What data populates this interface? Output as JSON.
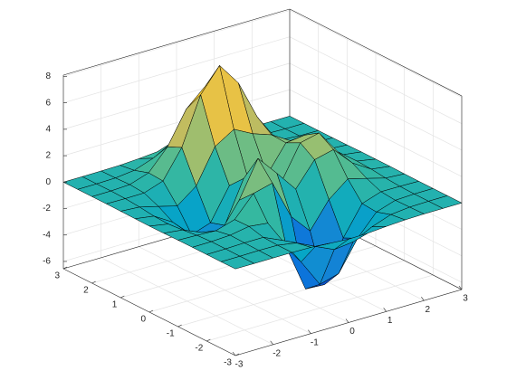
{
  "chart_data": {
    "type": "surface",
    "x": [
      -3,
      -2.5,
      -2,
      -1.5,
      -1,
      -0.5,
      0,
      0.5,
      1,
      1.5,
      2,
      2.5,
      3
    ],
    "y": [
      -3,
      -2.5,
      -2,
      -1.5,
      -1,
      -0.5,
      0,
      0.5,
      1,
      1.5,
      2,
      2.5,
      3
    ],
    "z": [
      [
        0.01,
        0,
        0,
        0,
        -0.03,
        -0.14,
        -0.24,
        -0.22,
        -0.11,
        -0.03,
        0,
        0,
        0
      ],
      [
        0,
        0,
        0.02,
        0,
        -0.24,
        -0.92,
        -1.57,
        -1.41,
        -0.69,
        -0.18,
        -0.03,
        0,
        0
      ],
      [
        0,
        0.01,
        0.05,
        0.05,
        -0.59,
        -2.64,
        -4.75,
        -4.35,
        -2.1,
        -0.53,
        -0.06,
        0,
        0
      ],
      [
        0,
        0.01,
        0.08,
        0.33,
        0.16,
        -2.16,
        -5.65,
        -5.74,
        -2.63,
        -0.44,
        0.04,
        0.03,
        0
      ],
      [
        -0.01,
        -0.06,
        -0.13,
        0.3,
        1.86,
        2.23,
        -0.73,
        -2.23,
        -0.27,
        0.88,
        0.5,
        0.11,
        0.01
      ],
      [
        -0.03,
        -0.2,
        -0.8,
        -1.21,
        0.8,
        3.55,
        2,
        0.39,
        2.2,
        2.55,
        1.12,
        0.24,
        0.03
      ],
      [
        -0.04,
        -0.3,
        -1.33,
        -2.77,
        -1.65,
        1.48,
        0.98,
        0.38,
        2.93,
        3.26,
        1.41,
        0.3,
        0.03
      ],
      [
        -0.03,
        -0.25,
        -1.12,
        -2.49,
        -2,
        0.39,
        0.46,
        0.38,
        2.38,
        2.55,
        1.09,
        0.23,
        0.03
      ],
      [
        -0.01,
        -0.11,
        -0.48,
        -0.86,
        0.23,
        2.8,
        3.69,
        2.94,
        2.44,
        1.58,
        0.58,
        0.11,
        0.01
      ],
      [
        0,
        -0.02,
        -0.01,
        0.48,
        2.6,
        6.17,
        7.97,
        6.23,
        3.24,
        1.18,
        0.29,
        0.05,
        0
      ],
      [
        0,
        0.01,
        0.08,
        0.55,
        2.1,
        4.55,
        5.85,
        4.57,
        2.21,
        0.67,
        0.13,
        0.02,
        0
      ],
      [
        0,
        0,
        0.03,
        0.19,
        0.69,
        1.47,
        1.88,
        1.47,
        0.7,
        0.2,
        0.04,
        0,
        0
      ],
      [
        0,
        0,
        0.01,
        0.03,
        0.11,
        0.23,
        0.3,
        0.23,
        0.11,
        0.03,
        0.01,
        0,
        0
      ]
    ],
    "xlim": [
      -3,
      3
    ],
    "ylim": [
      -3,
      3
    ],
    "zlim": [
      -6.55,
      8.1
    ],
    "xticks": [
      -3,
      -2,
      -1,
      0,
      1,
      2,
      3
    ],
    "yticks": [
      -3,
      -2,
      -1,
      0,
      1,
      2,
      3
    ],
    "zticks": [
      -6,
      -4,
      -2,
      0,
      2,
      4,
      6,
      8
    ],
    "grid": true,
    "edge_color": "#000000",
    "colormap": [
      "#352a87",
      "#0363e1",
      "#1485d4",
      "#06a7c6",
      "#38b99e",
      "#92bf73",
      "#d9ba56",
      "#fcce2e",
      "#f9fb0e"
    ]
  }
}
